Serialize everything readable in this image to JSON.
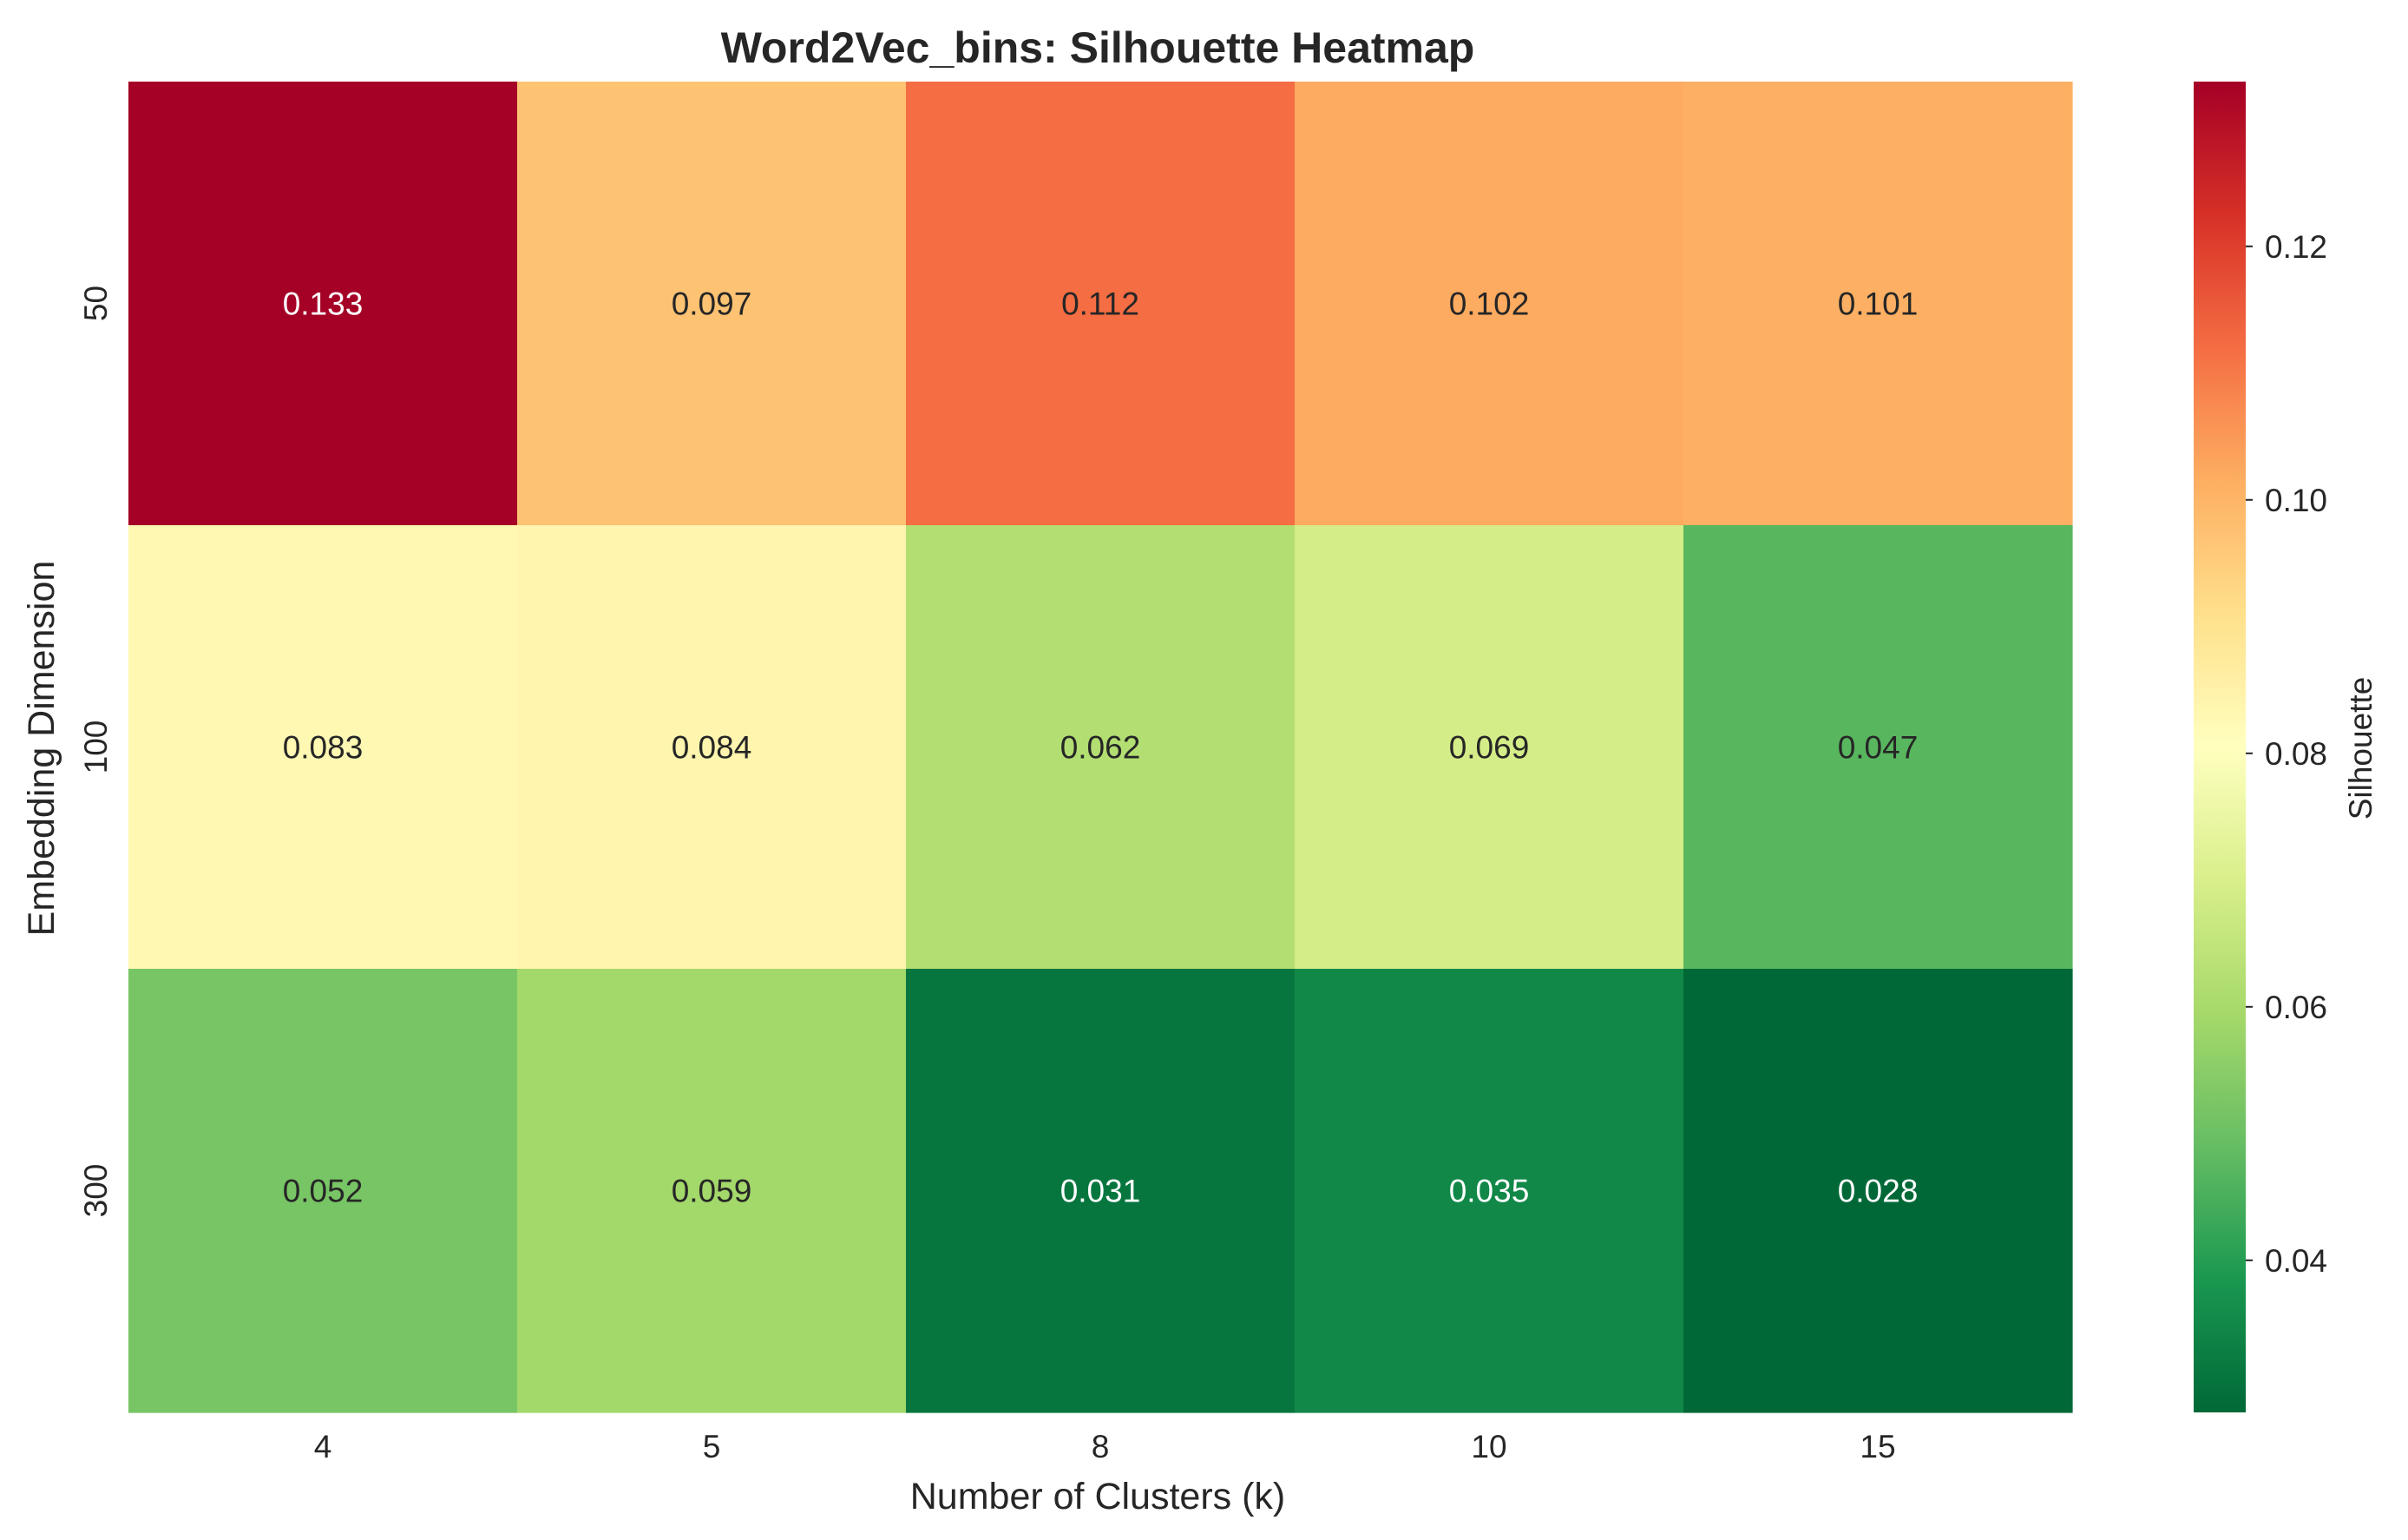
{
  "chart_data": {
    "type": "heatmap",
    "title": "Word2Vec_bins: Silhouette Heatmap",
    "xlabel": "Number of Clusters (k)",
    "ylabel": "Embedding Dimension",
    "x_categories": [
      "4",
      "5",
      "8",
      "10",
      "15"
    ],
    "y_categories": [
      "50",
      "100",
      "300"
    ],
    "values": [
      [
        0.133,
        0.097,
        0.112,
        0.102,
        0.101
      ],
      [
        0.083,
        0.084,
        0.062,
        0.069,
        0.047
      ],
      [
        0.052,
        0.059,
        0.031,
        0.035,
        0.028
      ]
    ],
    "value_labels": [
      [
        "0.133",
        "0.097",
        "0.112",
        "0.102",
        "0.101"
      ],
      [
        "0.083",
        "0.084",
        "0.062",
        "0.069",
        "0.047"
      ],
      [
        "0.052",
        "0.059",
        "0.031",
        "0.035",
        "0.028"
      ]
    ],
    "colormap": "RdYlGn_r",
    "vmin": 0.028,
    "vmax": 0.133,
    "colorbar": {
      "label": "Silhouette",
      "ticks": [
        "0.04",
        "0.06",
        "0.08",
        "0.10",
        "0.12"
      ],
      "position": "right"
    },
    "grid": false
  }
}
